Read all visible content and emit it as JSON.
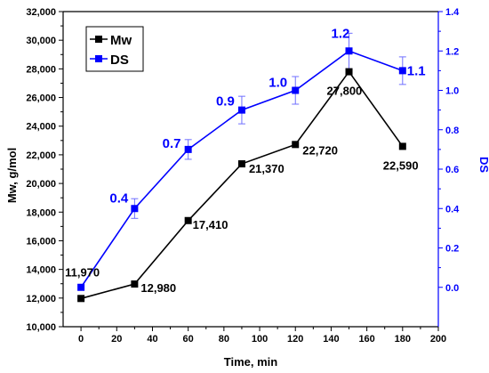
{
  "chart_data": {
    "type": "line",
    "xlabel": "Time, min",
    "ylabel_left": "Mw, g/mol",
    "ylabel_right": "DS",
    "xlim": [
      -10,
      200
    ],
    "ylim_left": [
      10000,
      32000
    ],
    "ylim_right": [
      -0.2,
      1.4
    ],
    "x_ticks": [
      0,
      20,
      40,
      60,
      80,
      100,
      120,
      140,
      160,
      180,
      200
    ],
    "y_left_ticks": [
      10000,
      12000,
      14000,
      16000,
      18000,
      20000,
      22000,
      24000,
      26000,
      28000,
      30000,
      32000
    ],
    "y_left_tick_labels": [
      "10,000",
      "12,000",
      "14,000",
      "16,000",
      "18,000",
      "20,000",
      "22,000",
      "24,000",
      "26,000",
      "28,000",
      "30,000",
      "32,000"
    ],
    "y_right_ticks": [
      0.0,
      0.2,
      0.4,
      0.6,
      0.8,
      1.0,
      1.2,
      1.4
    ],
    "y_right_tick_labels": [
      "0.0",
      "0.2",
      "0.4",
      "0.6",
      "0.8",
      "1.0",
      "1.2",
      "1.4"
    ],
    "grid": false,
    "legend_position": "top-left",
    "series": [
      {
        "name": "Mw",
        "axis": "left",
        "color": "#000000",
        "marker": "square",
        "x": [
          0,
          30,
          60,
          90,
          120,
          150,
          180
        ],
        "y": [
          11970,
          12980,
          17410,
          21370,
          22720,
          27800,
          22590
        ],
        "labels": [
          "11,970",
          "12,980",
          "17,410",
          "21,370",
          "22,720",
          "27,800",
          "22,590"
        ]
      },
      {
        "name": "DS",
        "axis": "right",
        "color": "#0000ff",
        "marker": "square",
        "x": [
          0,
          30,
          60,
          90,
          120,
          150,
          180
        ],
        "y": [
          0.0,
          0.4,
          0.7,
          0.9,
          1.0,
          1.2,
          1.1
        ],
        "error": [
          0.0,
          0.05,
          0.05,
          0.07,
          0.07,
          0.09,
          0.07
        ],
        "labels": [
          "",
          "0.4",
          "0.7",
          "0.9",
          "1.0",
          "1.2",
          "1.1"
        ]
      }
    ]
  }
}
